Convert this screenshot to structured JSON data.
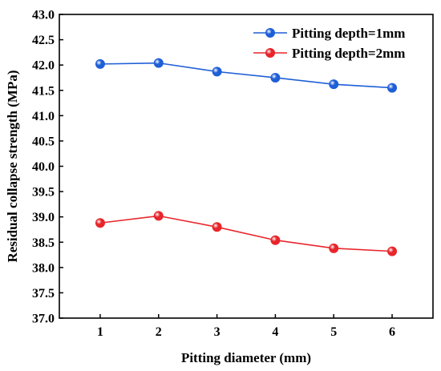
{
  "chart_data": {
    "type": "line",
    "title": "",
    "xlabel": "Pitting diameter (mm)",
    "ylabel": "Residual collapse strength (MPa)",
    "xlim": [
      0.3,
      6.7
    ],
    "ylim": [
      37.0,
      43.0
    ],
    "xticks": [
      1,
      2,
      3,
      4,
      5,
      6
    ],
    "xtick_labels": [
      "1",
      "2",
      "3",
      "4",
      "5",
      "6"
    ],
    "yticks": [
      37.0,
      37.5,
      38.0,
      38.5,
      39.0,
      39.5,
      40.0,
      40.5,
      41.0,
      41.5,
      42.0,
      42.5,
      43.0
    ],
    "ytick_labels": [
      "37.0",
      "37.5",
      "38.0",
      "38.5",
      "39.0",
      "39.5",
      "40.0",
      "40.5",
      "41.0",
      "41.5",
      "42.0",
      "42.5",
      "43.0"
    ],
    "x": [
      1,
      2,
      3,
      4,
      5,
      6
    ],
    "series": [
      {
        "name": "Pitting depth=1mm",
        "color": "#1f5fd6",
        "values": [
          42.02,
          42.04,
          41.87,
          41.75,
          41.62,
          41.55
        ]
      },
      {
        "name": "Pitting depth=2mm",
        "color": "#e8252b",
        "values": [
          38.88,
          39.02,
          38.8,
          38.54,
          38.38,
          38.32
        ]
      }
    ],
    "grid": false,
    "legend_position": "top-right",
    "marker": "circle"
  }
}
